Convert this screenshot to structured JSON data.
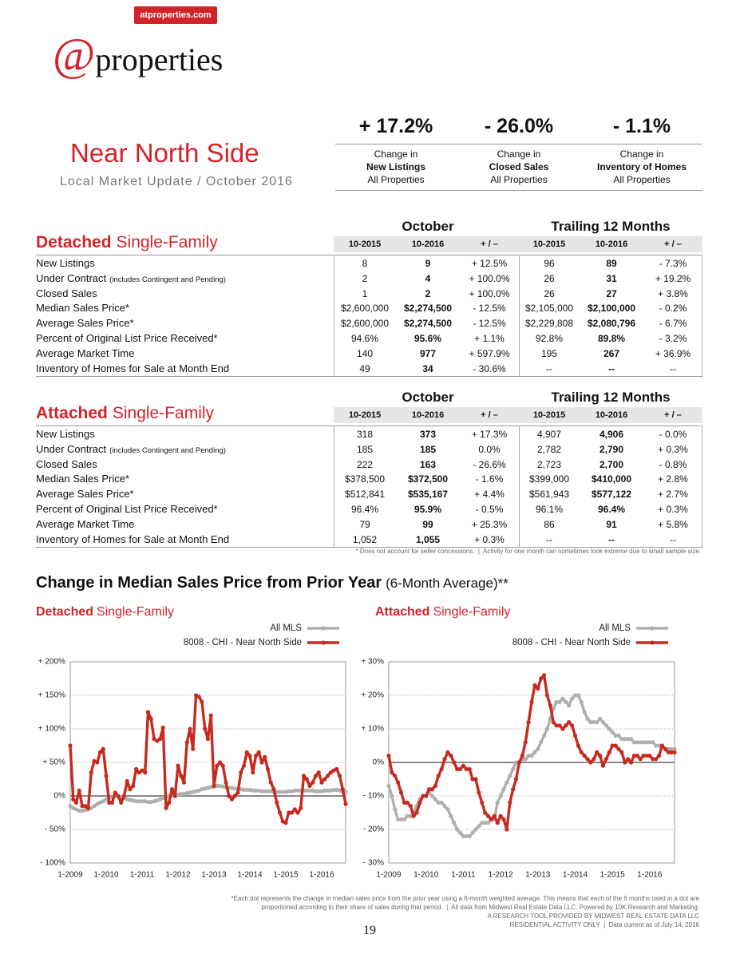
{
  "header": {
    "site": "atproperties.com",
    "logo_at": "@",
    "logo_text": "properties",
    "title": "Near North Side",
    "subtitle": "Local Market Update / October 2016"
  },
  "kpis": [
    {
      "value": "+ 17.2%",
      "lines": [
        "Change in",
        "New Listings",
        "All Properties"
      ]
    },
    {
      "value": "- 26.0%",
      "lines": [
        "Change in",
        "Closed Sales",
        "All Properties"
      ]
    },
    {
      "value": "- 1.1%",
      "lines": [
        "Change in",
        "Inventory of Homes",
        "All Properties"
      ]
    }
  ],
  "tables": [
    {
      "group_headers": [
        "October",
        "Trailing 12 Months"
      ],
      "heading_bold": "Detached",
      "heading": "Single-Family",
      "columns": [
        "10-2015",
        "10-2016",
        "+ / –",
        "10-2015",
        "10-2016",
        "+ / –"
      ],
      "rows": [
        {
          "label": "New Listings",
          "cells": [
            "8",
            "9",
            "+ 12.5%",
            "96",
            "89",
            "- 7.3%"
          ]
        },
        {
          "label": "Under Contract",
          "note": "(includes Contingent and Pending)",
          "cells": [
            "2",
            "4",
            "+ 100.0%",
            "26",
            "31",
            "+ 19.2%"
          ]
        },
        {
          "label": "Closed Sales",
          "cells": [
            "1",
            "2",
            "+ 100.0%",
            "26",
            "27",
            "+ 3.8%"
          ]
        },
        {
          "label": "Median Sales Price*",
          "cells": [
            "$2,600,000",
            "$2,274,500",
            "- 12.5%",
            "$2,105,000",
            "$2,100,000",
            "- 0.2%"
          ]
        },
        {
          "label": "Average Sales Price*",
          "cells": [
            "$2,600,000",
            "$2,274,500",
            "- 12.5%",
            "$2,229,808",
            "$2,080,796",
            "- 6.7%"
          ]
        },
        {
          "label": "Percent of Original List Price Received*",
          "cells": [
            "94.6%",
            "95.6%",
            "+ 1.1%",
            "92.8%",
            "89.8%",
            "- 3.2%"
          ]
        },
        {
          "label": "Average Market Time",
          "cells": [
            "140",
            "977",
            "+ 597.9%",
            "195",
            "267",
            "+ 36.9%"
          ]
        },
        {
          "label": "Inventory of Homes for Sale at Month End",
          "cells": [
            "49",
            "34",
            "- 30.6%",
            "--",
            "--",
            "--"
          ]
        }
      ]
    },
    {
      "group_headers": [
        "October",
        "Trailing 12 Months"
      ],
      "heading_bold": "Attached",
      "heading": "Single-Family",
      "columns": [
        "10-2015",
        "10-2016",
        "+ / –",
        "10-2015",
        "10-2016",
        "+ / –"
      ],
      "rows": [
        {
          "label": "New Listings",
          "cells": [
            "318",
            "373",
            "+ 17.3%",
            "4,907",
            "4,906",
            "- 0.0%"
          ]
        },
        {
          "label": "Under Contract",
          "note": "(includes Contingent and Pending)",
          "cells": [
            "185",
            "185",
            "0.0%",
            "2,782",
            "2,790",
            "+ 0.3%"
          ]
        },
        {
          "label": "Closed Sales",
          "cells": [
            "222",
            "163",
            "- 26.6%",
            "2,723",
            "2,700",
            "- 0.8%"
          ]
        },
        {
          "label": "Median Sales Price*",
          "cells": [
            "$378,500",
            "$372,500",
            "- 1.6%",
            "$399,000",
            "$410,000",
            "+ 2.8%"
          ]
        },
        {
          "label": "Average Sales Price*",
          "cells": [
            "$512,841",
            "$535,167",
            "+ 4.4%",
            "$561,943",
            "$577,122",
            "+ 2.7%"
          ]
        },
        {
          "label": "Percent of Original List Price Received*",
          "cells": [
            "96.4%",
            "95.9%",
            "- 0.5%",
            "96.1%",
            "96.4%",
            "+ 0.3%"
          ]
        },
        {
          "label": "Average Market Time",
          "cells": [
            "79",
            "99",
            "+ 25.3%",
            "86",
            "91",
            "+ 5.8%"
          ]
        },
        {
          "label": "Inventory of Homes for Sale at Month End",
          "cells": [
            "1,052",
            "1,055",
            "+ 0.3%",
            "--",
            "--",
            "--"
          ]
        }
      ]
    }
  ],
  "table_note": "* Does not account for seller concessions.  |  Activity for one month can sometimes look extreme due to small sample size.",
  "section_title": {
    "bold": "Change in Median Sales Price from Prior Year",
    "rest": "(6-Month Average)**"
  },
  "chart_data": [
    {
      "type": "line",
      "title_bold": "Detached",
      "title": "Single-Family",
      "grid": true,
      "categories": [
        "1-2009",
        null,
        null,
        null,
        null,
        null,
        null,
        null,
        null,
        null,
        null,
        null,
        "1-2010",
        null,
        null,
        null,
        null,
        null,
        null,
        null,
        null,
        null,
        null,
        null,
        "1-2011",
        null,
        null,
        null,
        null,
        null,
        null,
        null,
        null,
        null,
        null,
        null,
        "1-2012",
        null,
        null,
        null,
        null,
        null,
        null,
        null,
        null,
        null,
        null,
        null,
        "1-2013",
        null,
        null,
        null,
        null,
        null,
        null,
        null,
        null,
        null,
        null,
        null,
        "1-2014",
        null,
        null,
        null,
        null,
        null,
        null,
        null,
        null,
        null,
        null,
        null,
        "1-2015",
        null,
        null,
        null,
        null,
        null,
        null,
        null,
        null,
        null,
        null,
        null,
        "1-2016",
        null,
        null,
        null,
        null,
        null,
        null,
        null,
        null
      ],
      "ylim": [
        -100,
        200
      ],
      "yticks": [
        {
          "value": -100,
          "label": "- 100%"
        },
        {
          "value": -50,
          "label": "- 50%"
        },
        {
          "value": 0,
          "label": "0%"
        },
        {
          "value": 50,
          "label": "+ 50%"
        },
        {
          "value": 100,
          "label": "+ 100%"
        },
        {
          "value": 150,
          "label": "+ 150%"
        },
        {
          "value": 200,
          "label": "+ 200%"
        }
      ],
      "series": [
        {
          "name": "All MLS",
          "color": "#adb0ad",
          "values": [
            -15,
            -18,
            -20,
            -22,
            -22,
            -21,
            -20,
            -18,
            -15,
            -12,
            -10,
            -8,
            -5,
            -3,
            -2,
            0,
            0,
            -2,
            -3,
            -5,
            -6,
            -7,
            -8,
            -8,
            -8,
            -8,
            -9,
            -9,
            -8,
            -7,
            -5,
            -3,
            -1,
            0,
            1,
            2,
            2,
            3,
            3,
            4,
            5,
            6,
            7,
            8,
            10,
            11,
            12,
            13,
            14,
            15,
            15,
            14,
            13,
            12,
            12,
            11,
            10,
            10,
            9,
            9,
            9,
            8,
            8,
            8,
            7,
            7,
            7,
            7,
            6,
            6,
            6,
            6,
            6,
            7,
            7,
            8,
            8,
            8,
            8,
            8,
            8,
            8,
            7,
            7,
            7,
            8,
            8,
            8,
            9,
            9,
            8,
            7,
            6
          ]
        },
        {
          "name": "8008 - CHI - Near North Side",
          "color": "#c62a1f",
          "values": [
            75,
            -5,
            -10,
            8,
            -15,
            -15,
            -18,
            35,
            52,
            50,
            65,
            70,
            30,
            -10,
            -10,
            5,
            0,
            -10,
            0,
            22,
            10,
            15,
            40,
            35,
            38,
            35,
            125,
            115,
            85,
            82,
            85,
            102,
            -18,
            -10,
            10,
            0,
            45,
            30,
            20,
            80,
            100,
            70,
            150,
            148,
            140,
            100,
            85,
            120,
            15,
            45,
            50,
            45,
            20,
            0,
            -5,
            0,
            5,
            35,
            45,
            65,
            60,
            35,
            60,
            65,
            50,
            58,
            40,
            20,
            10,
            -10,
            -25,
            -38,
            -40,
            -25,
            -25,
            -20,
            -25,
            -18,
            30,
            25,
            15,
            20,
            30,
            35,
            20,
            25,
            30,
            35,
            38,
            40,
            30,
            10,
            -12
          ]
        }
      ]
    },
    {
      "type": "line",
      "title_bold": "Attached",
      "title": "Single-Family",
      "grid": true,
      "categories": [
        "1-2009",
        null,
        null,
        null,
        null,
        null,
        null,
        null,
        null,
        null,
        null,
        null,
        "1-2010",
        null,
        null,
        null,
        null,
        null,
        null,
        null,
        null,
        null,
        null,
        null,
        "1-2011",
        null,
        null,
        null,
        null,
        null,
        null,
        null,
        null,
        null,
        null,
        null,
        "1-2012",
        null,
        null,
        null,
        null,
        null,
        null,
        null,
        null,
        null,
        null,
        null,
        "1-2013",
        null,
        null,
        null,
        null,
        null,
        null,
        null,
        null,
        null,
        null,
        null,
        "1-2014",
        null,
        null,
        null,
        null,
        null,
        null,
        null,
        null,
        null,
        null,
        null,
        "1-2015",
        null,
        null,
        null,
        null,
        null,
        null,
        null,
        null,
        null,
        null,
        null,
        "1-2016",
        null,
        null,
        null,
        null,
        null,
        null,
        null,
        null
      ],
      "ylim": [
        -30,
        30
      ],
      "yticks": [
        {
          "value": -30,
          "label": "- 30%"
        },
        {
          "value": -20,
          "label": "- 20%"
        },
        {
          "value": -10,
          "label": "- 10%"
        },
        {
          "value": 0,
          "label": "0%"
        },
        {
          "value": 10,
          "label": "+ 10%"
        },
        {
          "value": 20,
          "label": "+ 20%"
        },
        {
          "value": 30,
          "label": "+ 30%"
        }
      ],
      "series": [
        {
          "name": "All MLS",
          "color": "#adb0ad",
          "values": [
            -7,
            -10,
            -14,
            -17,
            -17,
            -17,
            -16,
            -16,
            -15,
            -13,
            -11,
            -10,
            -10,
            -9,
            -10,
            -11,
            -12,
            -12,
            -13,
            -14,
            -16,
            -18,
            -20,
            -21,
            -22,
            -22,
            -22,
            -21,
            -20,
            -19,
            -18,
            -18,
            -18,
            -17,
            -17,
            -12,
            -10,
            -8,
            -6,
            -4,
            -2,
            0,
            0,
            1,
            1,
            2,
            2,
            3,
            4,
            6,
            8,
            10,
            13,
            16,
            18,
            18,
            19,
            18,
            17,
            19,
            20,
            20,
            18,
            15,
            13,
            12,
            12,
            12,
            13,
            12,
            11,
            10,
            9,
            8,
            8,
            7,
            7,
            7,
            7,
            6,
            6,
            6,
            6,
            6,
            6,
            6,
            5,
            5,
            5,
            4,
            4,
            4,
            4
          ]
        },
        {
          "name": "8008 - CHI - Near North Side",
          "color": "#c62a1f",
          "values": [
            2,
            -3,
            -4,
            -6,
            -9,
            -12,
            -12,
            -13,
            -16,
            -15,
            -12,
            -10,
            -10,
            -8,
            -8,
            -7,
            -4,
            -2,
            1,
            3,
            2,
            0,
            -2,
            -2,
            -1,
            -2,
            -2,
            -5,
            -5,
            -9,
            -12,
            -15,
            -16,
            -17,
            -16,
            -18,
            -16,
            -17,
            -20,
            -12,
            -8,
            -5,
            0,
            2,
            6,
            12,
            18,
            23,
            22,
            25,
            26,
            20,
            17,
            12,
            11,
            11,
            10,
            11,
            12,
            11,
            8,
            5,
            3,
            2,
            1,
            0,
            1,
            3,
            2,
            -1,
            1,
            3,
            5,
            5,
            4,
            3,
            0,
            1,
            0,
            2,
            2,
            1,
            2,
            2,
            2,
            1,
            1,
            2,
            5,
            4,
            3,
            3,
            3
          ]
        }
      ]
    }
  ],
  "footer": {
    "notes": [
      "*Each dot represents the change in median sales price from the prior year using a 6-month weighted average. This means that each of the 6 months used in a dot are",
      "proportioned according to their share of sales during that period.  |  All data from Midwest Real Estate Data LLC. Powered by 10K Research and Marketing.",
      "A RESEARCH TOOL PROVIDED BY MIDWEST REAL ESTATE DATA LLC",
      "RESIDENTIAL ACTIVITY ONLY  |  Data current as of July 14, 2016"
    ],
    "page": "19"
  }
}
